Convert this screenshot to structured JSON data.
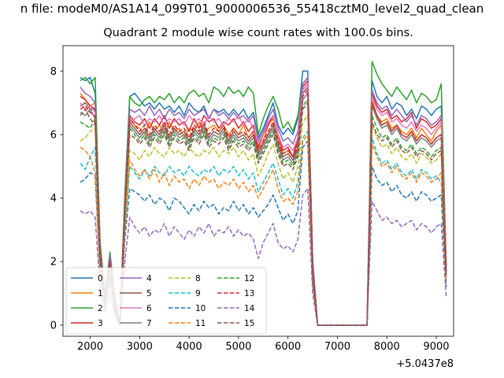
{
  "chart_data": {
    "type": "line",
    "title": "n file: modeM0/AS1A14_099T01_9000006536_55418cztM0_level2_quad_clean",
    "subtitle": "Quadrant 2 module wise count rates with 100.0s bins.",
    "xlabel": "",
    "ylabel": "",
    "x_offset_label": "+5.0437e8",
    "xlim": [
      1450,
      9350
    ],
    "ylim": [
      -0.35,
      8.8
    ],
    "xticks": [
      2000,
      3000,
      4000,
      5000,
      6000,
      7000,
      8000,
      9000
    ],
    "yticks": [
      0,
      2,
      4,
      6,
      8
    ],
    "x": [
      1800,
      1900,
      2000,
      2100,
      2200,
      2300,
      2400,
      2500,
      2600,
      2700,
      2800,
      2900,
      3000,
      3100,
      3200,
      3300,
      3400,
      3500,
      3600,
      3700,
      3800,
      3900,
      4000,
      4100,
      4200,
      4300,
      4400,
      4500,
      4600,
      4700,
      4800,
      4900,
      5000,
      5100,
      5200,
      5300,
      5400,
      5500,
      5600,
      5700,
      5800,
      5900,
      6000,
      6100,
      6200,
      6300,
      6400,
      6500,
      6600,
      7600,
      7700,
      7800,
      7900,
      8000,
      8100,
      8200,
      8300,
      8400,
      8500,
      8600,
      8700,
      8800,
      8900,
      9000,
      9100,
      9200
    ],
    "legend": {
      "placement": "lower-left",
      "columns": 4
    },
    "series": [
      {
        "name": "0",
        "color": "#1f77b4",
        "dash": "solid",
        "values": [
          7.8,
          7.7,
          7.8,
          7.3,
          2.5,
          0.9,
          2.2,
          0.8,
          0.0,
          4.0,
          7.2,
          7.3,
          7.1,
          6.9,
          7.0,
          6.8,
          7.0,
          6.8,
          6.9,
          6.7,
          6.9,
          6.6,
          7.0,
          6.8,
          6.7,
          6.9,
          6.5,
          6.8,
          6.7,
          6.8,
          6.6,
          6.8,
          6.6,
          6.8,
          6.5,
          6.7,
          5.9,
          6.2,
          6.6,
          7.0,
          6.3,
          6.0,
          6.2,
          6.0,
          6.5,
          8.0,
          8.0,
          2.0,
          0.0,
          0.0,
          7.7,
          7.2,
          7.0,
          7.2,
          6.8,
          7.0,
          6.9,
          6.6,
          6.8,
          6.5,
          6.9,
          6.8,
          6.6,
          6.8,
          6.9,
          1.9
        ]
      },
      {
        "name": "1",
        "color": "#ff7f0e",
        "dash": "solid",
        "values": [
          7.3,
          7.1,
          6.9,
          7.0,
          2.3,
          0.8,
          2.0,
          0.7,
          0.0,
          3.8,
          6.5,
          6.3,
          6.2,
          6.0,
          6.4,
          6.1,
          6.3,
          6.0,
          6.4,
          6.1,
          6.2,
          5.9,
          6.2,
          6.1,
          6.4,
          6.0,
          6.2,
          6.3,
          6.1,
          6.3,
          6.0,
          6.2,
          6.0,
          6.3,
          5.9,
          6.1,
          5.5,
          5.8,
          6.3,
          6.5,
          5.9,
          5.4,
          5.5,
          5.3,
          5.8,
          7.4,
          7.6,
          1.8,
          0.0,
          0.0,
          7.1,
          6.6,
          6.4,
          6.5,
          6.2,
          6.3,
          6.1,
          6.0,
          6.2,
          5.9,
          6.2,
          6.0,
          5.8,
          6.1,
          6.3,
          1.7
        ]
      },
      {
        "name": "2",
        "color": "#2ca02c",
        "dash": "solid",
        "values": [
          7.7,
          7.8,
          7.6,
          7.8,
          2.6,
          1.0,
          2.3,
          0.9,
          0.0,
          4.1,
          7.2,
          7.0,
          6.9,
          7.1,
          7.2,
          7.0,
          7.2,
          7.1,
          7.3,
          7.0,
          7.2,
          7.0,
          7.3,
          7.4,
          7.2,
          7.3,
          7.0,
          7.5,
          7.4,
          7.2,
          7.5,
          7.3,
          7.4,
          7.2,
          7.5,
          7.3,
          6.0,
          6.5,
          6.9,
          7.2,
          6.8,
          6.2,
          6.4,
          6.1,
          6.6,
          7.6,
          7.8,
          2.1,
          0.0,
          0.0,
          8.3,
          7.9,
          7.6,
          7.4,
          7.2,
          7.5,
          7.3,
          7.1,
          7.4,
          7.0,
          7.3,
          7.2,
          7.0,
          7.1,
          7.6,
          2.0
        ]
      },
      {
        "name": "3",
        "color": "#d62728",
        "dash": "solid",
        "values": [
          7.2,
          7.1,
          6.9,
          6.8,
          2.2,
          0.8,
          2.1,
          0.7,
          0.0,
          3.7,
          6.6,
          6.4,
          6.3,
          6.5,
          6.2,
          6.5,
          6.3,
          6.6,
          6.2,
          6.5,
          6.3,
          6.4,
          6.1,
          6.5,
          6.2,
          6.6,
          6.4,
          6.5,
          6.2,
          6.4,
          6.3,
          6.5,
          6.2,
          6.4,
          6.1,
          6.3,
          5.6,
          6.0,
          6.3,
          6.6,
          6.0,
          5.5,
          5.6,
          5.3,
          5.9,
          7.5,
          7.7,
          1.9,
          0.0,
          0.0,
          7.3,
          6.9,
          6.7,
          6.8,
          6.5,
          6.6,
          6.4,
          6.5,
          6.7,
          6.2,
          6.5,
          6.4,
          6.2,
          6.3,
          6.5,
          1.8
        ]
      },
      {
        "name": "4",
        "color": "#9467bd",
        "dash": "solid",
        "values": [
          7.5,
          7.3,
          7.2,
          7.0,
          2.4,
          0.9,
          2.2,
          0.8,
          0.0,
          3.9,
          6.8,
          6.7,
          6.8,
          6.6,
          6.9,
          6.6,
          6.8,
          6.5,
          6.8,
          6.6,
          6.7,
          6.5,
          6.8,
          6.6,
          6.7,
          6.8,
          6.5,
          6.8,
          6.6,
          6.7,
          6.5,
          6.7,
          6.5,
          6.6,
          6.4,
          6.6,
          5.8,
          6.1,
          6.5,
          6.8,
          6.2,
          5.8,
          5.9,
          5.7,
          6.1,
          7.6,
          7.8,
          2.0,
          0.0,
          0.0,
          7.4,
          7.0,
          6.8,
          6.9,
          6.6,
          6.8,
          6.6,
          6.4,
          6.6,
          6.3,
          6.6,
          6.5,
          6.3,
          6.4,
          6.6,
          1.8
        ]
      },
      {
        "name": "5",
        "color": "#8c564b",
        "dash": "solid",
        "values": [
          6.9,
          7.0,
          6.8,
          6.8,
          2.3,
          0.8,
          2.0,
          0.7,
          0.0,
          3.8,
          6.4,
          6.2,
          6.0,
          6.2,
          5.9,
          6.2,
          6.0,
          6.3,
          5.9,
          6.2,
          6.0,
          6.1,
          5.8,
          6.2,
          6.0,
          6.3,
          5.9,
          6.1,
          6.0,
          6.2,
          5.8,
          6.1,
          5.9,
          6.0,
          5.8,
          6.0,
          5.4,
          5.7,
          6.0,
          6.3,
          5.7,
          5.3,
          5.4,
          5.2,
          5.6,
          7.3,
          7.5,
          1.8,
          0.0,
          0.0,
          7.0,
          6.6,
          6.3,
          6.4,
          6.1,
          6.3,
          6.0,
          5.9,
          6.1,
          5.8,
          6.0,
          5.9,
          5.7,
          5.9,
          6.0,
          1.7
        ]
      },
      {
        "name": "6",
        "color": "#e377c2",
        "dash": "solid",
        "values": [
          7.0,
          6.8,
          6.9,
          6.7,
          2.2,
          0.8,
          2.0,
          0.7,
          0.0,
          3.7,
          6.3,
          6.5,
          6.6,
          6.3,
          6.5,
          6.4,
          6.6,
          6.3,
          6.5,
          6.4,
          6.5,
          6.3,
          6.6,
          6.4,
          6.5,
          6.3,
          6.6,
          6.4,
          6.5,
          6.3,
          6.5,
          6.4,
          6.6,
          6.3,
          6.5,
          6.2,
          5.7,
          6.0,
          6.4,
          6.6,
          6.0,
          5.6,
          5.7,
          5.5,
          5.9,
          7.4,
          7.6,
          1.9,
          0.0,
          0.0,
          7.2,
          6.8,
          6.6,
          6.7,
          6.4,
          6.5,
          6.3,
          6.2,
          6.4,
          6.1,
          6.3,
          6.2,
          6.0,
          6.2,
          6.4,
          1.8
        ]
      },
      {
        "name": "7",
        "color": "#7f7f7f",
        "dash": "solid",
        "values": [
          6.7,
          6.6,
          6.8,
          6.5,
          2.1,
          0.7,
          1.9,
          0.6,
          0.0,
          3.6,
          6.3,
          6.1,
          5.9,
          6.1,
          5.8,
          6.1,
          5.9,
          6.2,
          5.8,
          6.1,
          5.9,
          6.0,
          5.7,
          6.1,
          5.9,
          6.2,
          5.8,
          6.0,
          5.9,
          6.1,
          5.7,
          6.0,
          5.8,
          5.9,
          5.7,
          5.9,
          5.3,
          5.6,
          5.9,
          6.2,
          5.6,
          5.2,
          5.3,
          5.1,
          5.5,
          7.1,
          7.3,
          1.7,
          0.0,
          0.0,
          6.9,
          6.5,
          6.2,
          6.3,
          6.0,
          6.2,
          5.9,
          5.8,
          6.0,
          5.7,
          5.9,
          5.8,
          5.6,
          5.8,
          5.9,
          1.6
        ]
      },
      {
        "name": "8",
        "color": "#bcbd22",
        "dash": "dash",
        "values": [
          5.8,
          5.9,
          6.1,
          6.2,
          2.0,
          0.7,
          1.8,
          0.6,
          0.0,
          3.2,
          5.5,
          5.4,
          5.2,
          5.5,
          5.3,
          5.6,
          5.4,
          5.3,
          5.6,
          5.4,
          5.5,
          5.3,
          5.6,
          5.4,
          5.3,
          5.5,
          5.4,
          5.6,
          5.3,
          5.5,
          5.4,
          5.6,
          5.3,
          5.5,
          5.2,
          5.4,
          4.7,
          5.0,
          5.4,
          5.7,
          5.1,
          4.6,
          4.8,
          4.5,
          5.0,
          6.4,
          6.6,
          1.6,
          0.0,
          0.0,
          6.3,
          5.9,
          5.6,
          5.7,
          5.4,
          5.6,
          5.3,
          5.2,
          5.4,
          5.1,
          5.4,
          5.3,
          5.1,
          5.2,
          5.4,
          1.5
        ]
      },
      {
        "name": "9",
        "color": "#17becf",
        "dash": "dash",
        "values": [
          5.1,
          4.9,
          5.3,
          5.6,
          1.8,
          0.6,
          1.6,
          0.5,
          0.0,
          3.0,
          5.0,
          4.8,
          4.6,
          4.9,
          4.7,
          5.0,
          4.8,
          4.7,
          5.0,
          4.8,
          4.9,
          4.7,
          5.0,
          4.8,
          4.7,
          4.9,
          4.8,
          5.0,
          4.7,
          4.9,
          4.8,
          5.0,
          4.7,
          4.9,
          4.6,
          4.8,
          4.2,
          4.5,
          4.8,
          5.1,
          4.6,
          4.1,
          4.3,
          4.0,
          4.5,
          5.9,
          6.1,
          1.5,
          0.0,
          0.0,
          5.9,
          5.4,
          5.1,
          5.2,
          4.9,
          5.1,
          4.8,
          4.7,
          4.9,
          4.6,
          4.9,
          4.8,
          4.6,
          4.7,
          4.5,
          1.4
        ]
      },
      {
        "name": "10",
        "color": "#1f77b4",
        "dash": "dash",
        "values": [
          4.5,
          4.6,
          4.8,
          4.7,
          1.6,
          0.5,
          1.4,
          0.4,
          0.0,
          2.7,
          4.3,
          4.2,
          4.1,
          3.9,
          4.1,
          3.8,
          4.0,
          3.9,
          3.6,
          4.0,
          3.9,
          3.7,
          3.5,
          3.8,
          3.6,
          3.9,
          3.7,
          3.8,
          3.5,
          3.7,
          3.6,
          3.9,
          3.6,
          3.8,
          3.5,
          3.7,
          3.4,
          3.6,
          3.8,
          4.1,
          3.7,
          3.3,
          3.5,
          3.2,
          3.6,
          5.6,
          5.8,
          1.3,
          0.0,
          0.0,
          5.0,
          4.6,
          4.4,
          4.5,
          4.2,
          4.4,
          4.1,
          4.0,
          4.2,
          3.9,
          4.2,
          4.1,
          3.9,
          4.0,
          4.1,
          1.2
        ]
      },
      {
        "name": "11",
        "color": "#ff7f0e",
        "dash": "dash",
        "values": [
          5.6,
          5.5,
          5.3,
          4.8,
          1.7,
          0.6,
          1.6,
          0.5,
          0.0,
          3.0,
          5.2,
          4.9,
          4.7,
          4.9,
          4.6,
          4.9,
          4.5,
          4.8,
          4.4,
          4.7,
          4.5,
          4.6,
          4.3,
          4.6,
          4.4,
          4.7,
          4.5,
          4.6,
          4.3,
          4.5,
          4.4,
          4.6,
          4.3,
          4.5,
          4.2,
          4.4,
          4.0,
          4.3,
          4.6,
          4.9,
          4.3,
          3.9,
          4.0,
          3.8,
          4.2,
          5.8,
          6.0,
          1.4,
          0.0,
          0.0,
          5.7,
          5.3,
          5.0,
          5.1,
          4.8,
          5.0,
          4.7,
          4.6,
          4.8,
          4.5,
          4.8,
          4.7,
          4.5,
          4.6,
          4.8,
          1.3
        ]
      },
      {
        "name": "12",
        "color": "#2ca02c",
        "dash": "dash",
        "values": [
          6.4,
          6.3,
          6.2,
          6.5,
          2.1,
          0.7,
          1.9,
          0.6,
          0.0,
          3.5,
          6.2,
          6.0,
          5.8,
          6.0,
          5.7,
          6.0,
          5.8,
          6.1,
          5.7,
          6.0,
          5.8,
          5.9,
          5.6,
          6.0,
          5.8,
          6.1,
          5.7,
          5.9,
          5.8,
          6.0,
          5.6,
          5.9,
          5.7,
          5.8,
          5.6,
          5.8,
          5.2,
          5.5,
          5.8,
          6.1,
          5.5,
          5.1,
          5.2,
          5.0,
          5.4,
          6.9,
          7.1,
          1.7,
          0.0,
          0.0,
          6.6,
          6.2,
          5.9,
          6.0,
          5.7,
          5.9,
          5.6,
          5.5,
          5.7,
          5.4,
          5.6,
          5.5,
          5.3,
          5.5,
          5.6,
          1.6
        ]
      },
      {
        "name": "13",
        "color": "#d62728",
        "dash": "dash",
        "values": [
          6.8,
          6.9,
          6.7,
          6.6,
          2.2,
          0.8,
          2.0,
          0.7,
          0.0,
          3.7,
          6.5,
          6.3,
          6.1,
          6.3,
          6.0,
          6.3,
          6.1,
          6.4,
          6.0,
          6.3,
          6.1,
          6.2,
          5.9,
          6.3,
          6.1,
          6.4,
          6.0,
          6.2,
          6.1,
          6.3,
          5.9,
          6.2,
          6.0,
          6.1,
          5.9,
          6.1,
          5.5,
          5.8,
          6.1,
          6.4,
          5.8,
          5.4,
          5.5,
          5.3,
          5.7,
          7.2,
          7.4,
          1.8,
          0.0,
          0.0,
          7.0,
          6.6,
          6.3,
          6.4,
          6.1,
          6.3,
          6.0,
          5.9,
          6.1,
          5.8,
          6.0,
          5.9,
          5.7,
          5.9,
          6.0,
          1.7
        ]
      },
      {
        "name": "14",
        "color": "#9467bd",
        "dash": "dash",
        "values": [
          3.6,
          3.5,
          3.6,
          3.4,
          1.2,
          0.4,
          1.0,
          0.3,
          0.0,
          2.0,
          3.4,
          3.1,
          2.9,
          3.1,
          2.8,
          3.0,
          2.9,
          3.2,
          2.8,
          3.1,
          2.9,
          2.7,
          3.0,
          2.8,
          3.1,
          2.9,
          3.2,
          2.8,
          3.0,
          2.9,
          3.1,
          2.8,
          3.0,
          2.8,
          2.9,
          2.7,
          2.1,
          2.6,
          2.9,
          3.2,
          2.6,
          2.4,
          2.5,
          2.3,
          2.7,
          4.1,
          4.3,
          1.0,
          0.0,
          0.0,
          3.9,
          3.6,
          3.3,
          3.4,
          3.2,
          3.3,
          3.1,
          3.2,
          3.3,
          3.0,
          3.2,
          3.1,
          2.9,
          3.1,
          3.2,
          0.9
        ]
      },
      {
        "name": "15",
        "color": "#8c564b",
        "dash": "dash",
        "values": [
          6.6,
          6.8,
          6.5,
          6.3,
          2.1,
          0.7,
          1.9,
          0.6,
          0.0,
          3.6,
          6.0,
          5.9,
          5.7,
          5.9,
          5.6,
          5.9,
          5.7,
          6.0,
          5.6,
          5.9,
          5.7,
          5.8,
          5.5,
          5.9,
          5.7,
          6.0,
          5.6,
          5.8,
          5.7,
          5.9,
          5.5,
          5.8,
          5.6,
          5.7,
          5.5,
          5.7,
          5.1,
          5.4,
          5.7,
          6.0,
          5.4,
          5.0,
          5.1,
          4.9,
          5.3,
          6.8,
          7.0,
          1.7,
          0.0,
          0.0,
          6.4,
          6.0,
          5.8,
          5.9,
          5.6,
          5.8,
          5.5,
          5.4,
          5.6,
          5.3,
          5.5,
          5.4,
          5.2,
          5.4,
          5.5,
          1.5
        ]
      }
    ]
  }
}
